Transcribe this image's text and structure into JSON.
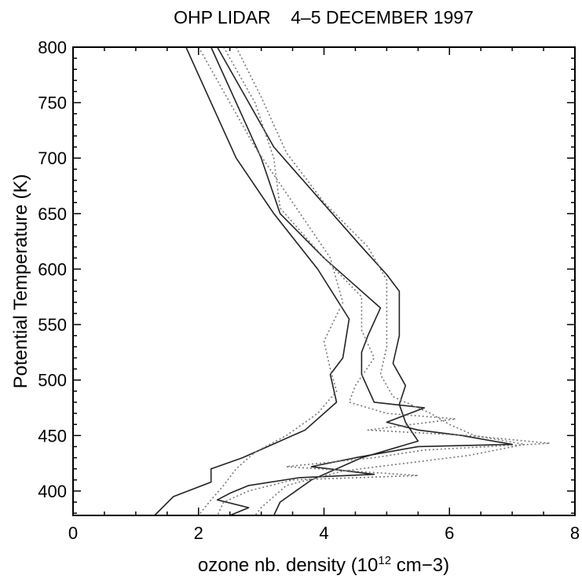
{
  "chart_data": {
    "type": "line",
    "title": "OHP LIDAR    4–5 DECEMBER 1997",
    "xlabel": "ozone nb. density (10",
    "xlabel_sup": "12",
    "xlabel_tail": " cm−3)",
    "ylabel": "Potential Temperature (K)",
    "xlim": [
      0,
      8
    ],
    "ylim": [
      378,
      800
    ],
    "xticks": [
      0,
      2,
      4,
      6,
      8
    ],
    "xtick_labels": [
      "0",
      "2",
      "4",
      "6",
      "8"
    ],
    "yticks": [
      400,
      450,
      500,
      550,
      600,
      650,
      700,
      750,
      800
    ],
    "ytick_labels": [
      "400",
      "450",
      "500",
      "550",
      "600",
      "650",
      "700",
      "750",
      "800"
    ],
    "grid": false,
    "series": [
      {
        "style": "solid",
        "points": [
          [
            1.8,
            800
          ],
          [
            2.2,
            750
          ],
          [
            2.6,
            700
          ],
          [
            3.2,
            650
          ],
          [
            3.9,
            600
          ],
          [
            4.4,
            555
          ],
          [
            4.3,
            520
          ],
          [
            4.1,
            505
          ],
          [
            4.2,
            480
          ],
          [
            3.7,
            455
          ],
          [
            2.7,
            430
          ],
          [
            2.2,
            420
          ],
          [
            2.2,
            408
          ],
          [
            1.6,
            395
          ],
          [
            1.3,
            378
          ]
        ]
      },
      {
        "style": "solid",
        "points": [
          [
            2.2,
            800
          ],
          [
            2.6,
            750
          ],
          [
            3.0,
            700
          ],
          [
            3.3,
            650
          ],
          [
            4.0,
            610
          ],
          [
            4.6,
            580
          ],
          [
            4.9,
            565
          ],
          [
            4.7,
            540
          ],
          [
            4.6,
            525
          ],
          [
            4.6,
            505
          ],
          [
            4.8,
            480
          ],
          [
            5.6,
            475
          ],
          [
            5.0,
            462
          ],
          [
            5.5,
            455
          ],
          [
            6.2,
            450
          ],
          [
            7.0,
            442
          ],
          [
            5.5,
            440
          ],
          [
            4.5,
            430
          ],
          [
            3.8,
            422
          ],
          [
            4.8,
            415
          ],
          [
            3.6,
            412
          ],
          [
            2.8,
            405
          ],
          [
            2.5,
            398
          ],
          [
            2.3,
            392
          ],
          [
            2.8,
            385
          ],
          [
            2.5,
            378
          ]
        ]
      },
      {
        "style": "solid",
        "points": [
          [
            2.3,
            800
          ],
          [
            2.7,
            760
          ],
          [
            3.2,
            710
          ],
          [
            3.9,
            665
          ],
          [
            4.6,
            620
          ],
          [
            5.0,
            595
          ],
          [
            5.2,
            580
          ],
          [
            5.2,
            540
          ],
          [
            5.1,
            515
          ],
          [
            5.3,
            495
          ],
          [
            5.2,
            478
          ],
          [
            5.3,
            462
          ],
          [
            5.5,
            445
          ],
          [
            4.6,
            430
          ],
          [
            3.8,
            410
          ],
          [
            3.3,
            390
          ],
          [
            3.2,
            378
          ]
        ]
      },
      {
        "style": "dotted",
        "points": [
          [
            2.4,
            800
          ],
          [
            2.9,
            750
          ],
          [
            3.2,
            700
          ],
          [
            3.3,
            655
          ],
          [
            4.0,
            610
          ],
          [
            4.6,
            575
          ],
          [
            4.6,
            545
          ],
          [
            4.8,
            520
          ],
          [
            4.5,
            495
          ],
          [
            4.4,
            480
          ],
          [
            5.0,
            470
          ],
          [
            6.1,
            465
          ],
          [
            4.7,
            455
          ],
          [
            6.3,
            450
          ],
          [
            7.6,
            443
          ],
          [
            5.6,
            437
          ],
          [
            4.8,
            430
          ],
          [
            3.4,
            422
          ],
          [
            5.5,
            414
          ],
          [
            3.5,
            410
          ],
          [
            2.8,
            400
          ],
          [
            2.4,
            390
          ],
          [
            2.3,
            378
          ]
        ]
      },
      {
        "style": "dotted",
        "points": [
          [
            2.6,
            800
          ],
          [
            3.0,
            755
          ],
          [
            3.4,
            705
          ],
          [
            4.0,
            660
          ],
          [
            4.7,
            620
          ],
          [
            5.0,
            590
          ],
          [
            5.0,
            560
          ],
          [
            5.0,
            530
          ],
          [
            4.9,
            505
          ],
          [
            5.1,
            485
          ],
          [
            5.7,
            470
          ],
          [
            6.0,
            460
          ],
          [
            6.4,
            450
          ],
          [
            7.2,
            442
          ],
          [
            6.3,
            432
          ],
          [
            5.3,
            425
          ],
          [
            4.3,
            418
          ],
          [
            3.4,
            405
          ],
          [
            3.2,
            395
          ],
          [
            3.0,
            385
          ],
          [
            2.9,
            378
          ]
        ]
      },
      {
        "style": "dotted",
        "points": [
          [
            2.0,
            800
          ],
          [
            2.4,
            760
          ],
          [
            2.9,
            710
          ],
          [
            3.5,
            660
          ],
          [
            4.1,
            610
          ],
          [
            4.3,
            570
          ],
          [
            4.0,
            535
          ],
          [
            4.1,
            510
          ],
          [
            4.2,
            490
          ],
          [
            3.9,
            470
          ],
          [
            3.4,
            450
          ],
          [
            2.9,
            435
          ],
          [
            2.6,
            420
          ],
          [
            2.4,
            405
          ],
          [
            2.2,
            392
          ],
          [
            2.0,
            378
          ]
        ]
      }
    ]
  }
}
